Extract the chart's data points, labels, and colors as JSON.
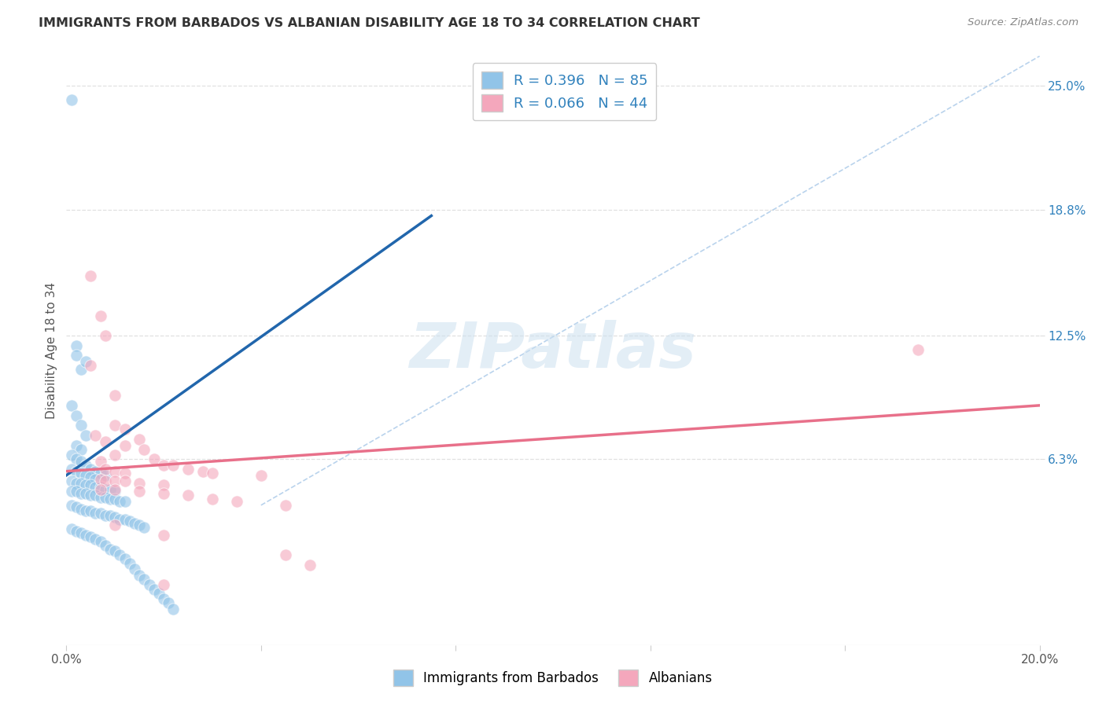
{
  "title": "IMMIGRANTS FROM BARBADOS VS ALBANIAN DISABILITY AGE 18 TO 34 CORRELATION CHART",
  "source": "Source: ZipAtlas.com",
  "ylabel": "Disability Age 18 to 34",
  "xlim": [
    0.0,
    0.2
  ],
  "ylim": [
    -0.03,
    0.265
  ],
  "right_yticks": [
    0.063,
    0.125,
    0.188,
    0.25
  ],
  "right_yticklabels": [
    "6.3%",
    "12.5%",
    "18.8%",
    "25.0%"
  ],
  "xticklabels_left": "0.0%",
  "xticklabels_right": "20.0%",
  "legend_text1": "R = 0.396   N = 85",
  "legend_text2": "R = 0.066   N = 44",
  "color_blue": "#91c4e8",
  "color_pink": "#f4a7bc",
  "color_blue_line": "#2166ac",
  "color_pink_line": "#e8708a",
  "color_blue_text": "#3182bd",
  "watermark": "ZIPatlas",
  "label_barbados": "Immigrants from Barbados",
  "label_albanians": "Albanians",
  "blue_scatter": [
    [
      0.001,
      0.243
    ],
    [
      0.002,
      0.12
    ],
    [
      0.002,
      0.115
    ],
    [
      0.003,
      0.108
    ],
    [
      0.004,
      0.112
    ],
    [
      0.001,
      0.09
    ],
    [
      0.002,
      0.085
    ],
    [
      0.003,
      0.08
    ],
    [
      0.004,
      0.075
    ],
    [
      0.002,
      0.07
    ],
    [
      0.003,
      0.068
    ],
    [
      0.001,
      0.065
    ],
    [
      0.002,
      0.063
    ],
    [
      0.003,
      0.062
    ],
    [
      0.004,
      0.06
    ],
    [
      0.005,
      0.058
    ],
    [
      0.006,
      0.057
    ],
    [
      0.007,
      0.056
    ],
    [
      0.008,
      0.055
    ],
    [
      0.001,
      0.058
    ],
    [
      0.002,
      0.057
    ],
    [
      0.003,
      0.056
    ],
    [
      0.004,
      0.055
    ],
    [
      0.005,
      0.054
    ],
    [
      0.006,
      0.053
    ],
    [
      0.001,
      0.052
    ],
    [
      0.002,
      0.051
    ],
    [
      0.003,
      0.051
    ],
    [
      0.004,
      0.05
    ],
    [
      0.005,
      0.05
    ],
    [
      0.006,
      0.049
    ],
    [
      0.007,
      0.049
    ],
    [
      0.008,
      0.048
    ],
    [
      0.009,
      0.048
    ],
    [
      0.01,
      0.047
    ],
    [
      0.001,
      0.047
    ],
    [
      0.002,
      0.047
    ],
    [
      0.003,
      0.046
    ],
    [
      0.004,
      0.046
    ],
    [
      0.005,
      0.045
    ],
    [
      0.006,
      0.045
    ],
    [
      0.007,
      0.044
    ],
    [
      0.008,
      0.044
    ],
    [
      0.009,
      0.043
    ],
    [
      0.01,
      0.043
    ],
    [
      0.011,
      0.042
    ],
    [
      0.012,
      0.042
    ],
    [
      0.001,
      0.04
    ],
    [
      0.002,
      0.039
    ],
    [
      0.003,
      0.038
    ],
    [
      0.004,
      0.037
    ],
    [
      0.005,
      0.037
    ],
    [
      0.006,
      0.036
    ],
    [
      0.007,
      0.036
    ],
    [
      0.008,
      0.035
    ],
    [
      0.009,
      0.035
    ],
    [
      0.01,
      0.034
    ],
    [
      0.011,
      0.033
    ],
    [
      0.012,
      0.033
    ],
    [
      0.013,
      0.032
    ],
    [
      0.014,
      0.031
    ],
    [
      0.015,
      0.03
    ],
    [
      0.016,
      0.029
    ],
    [
      0.001,
      0.028
    ],
    [
      0.002,
      0.027
    ],
    [
      0.003,
      0.026
    ],
    [
      0.004,
      0.025
    ],
    [
      0.005,
      0.024
    ],
    [
      0.006,
      0.023
    ],
    [
      0.007,
      0.022
    ],
    [
      0.008,
      0.02
    ],
    [
      0.009,
      0.018
    ],
    [
      0.01,
      0.017
    ],
    [
      0.011,
      0.015
    ],
    [
      0.012,
      0.013
    ],
    [
      0.013,
      0.011
    ],
    [
      0.014,
      0.008
    ],
    [
      0.015,
      0.005
    ],
    [
      0.016,
      0.003
    ],
    [
      0.017,
      0.0
    ],
    [
      0.018,
      -0.002
    ],
    [
      0.019,
      -0.004
    ],
    [
      0.02,
      -0.007
    ],
    [
      0.021,
      -0.009
    ],
    [
      0.022,
      -0.012
    ]
  ],
  "pink_scatter": [
    [
      0.005,
      0.155
    ],
    [
      0.007,
      0.135
    ],
    [
      0.008,
      0.125
    ],
    [
      0.005,
      0.11
    ],
    [
      0.01,
      0.095
    ],
    [
      0.01,
      0.08
    ],
    [
      0.012,
      0.078
    ],
    [
      0.006,
      0.075
    ],
    [
      0.015,
      0.073
    ],
    [
      0.008,
      0.072
    ],
    [
      0.012,
      0.07
    ],
    [
      0.016,
      0.068
    ],
    [
      0.01,
      0.065
    ],
    [
      0.018,
      0.063
    ],
    [
      0.007,
      0.062
    ],
    [
      0.02,
      0.06
    ],
    [
      0.022,
      0.06
    ],
    [
      0.008,
      0.058
    ],
    [
      0.025,
      0.058
    ],
    [
      0.01,
      0.057
    ],
    [
      0.028,
      0.057
    ],
    [
      0.012,
      0.056
    ],
    [
      0.03,
      0.056
    ],
    [
      0.04,
      0.055
    ],
    [
      0.007,
      0.053
    ],
    [
      0.008,
      0.052
    ],
    [
      0.01,
      0.052
    ],
    [
      0.012,
      0.052
    ],
    [
      0.015,
      0.051
    ],
    [
      0.02,
      0.05
    ],
    [
      0.007,
      0.048
    ],
    [
      0.01,
      0.048
    ],
    [
      0.015,
      0.047
    ],
    [
      0.02,
      0.046
    ],
    [
      0.025,
      0.045
    ],
    [
      0.03,
      0.043
    ],
    [
      0.035,
      0.042
    ],
    [
      0.045,
      0.04
    ],
    [
      0.01,
      0.03
    ],
    [
      0.02,
      0.025
    ],
    [
      0.045,
      0.015
    ],
    [
      0.05,
      0.01
    ],
    [
      0.175,
      0.118
    ],
    [
      0.02,
      0.0
    ]
  ],
  "blue_line_x": [
    0.0,
    0.075
  ],
  "blue_line_y": [
    0.055,
    0.185
  ],
  "pink_line_x": [
    0.0,
    0.2
  ],
  "pink_line_y": [
    0.057,
    0.09
  ],
  "diag_line_x": [
    0.04,
    0.2
  ],
  "diag_line_y": [
    0.04,
    0.265
  ],
  "background_color": "#ffffff",
  "grid_color": "#e0e0e0"
}
